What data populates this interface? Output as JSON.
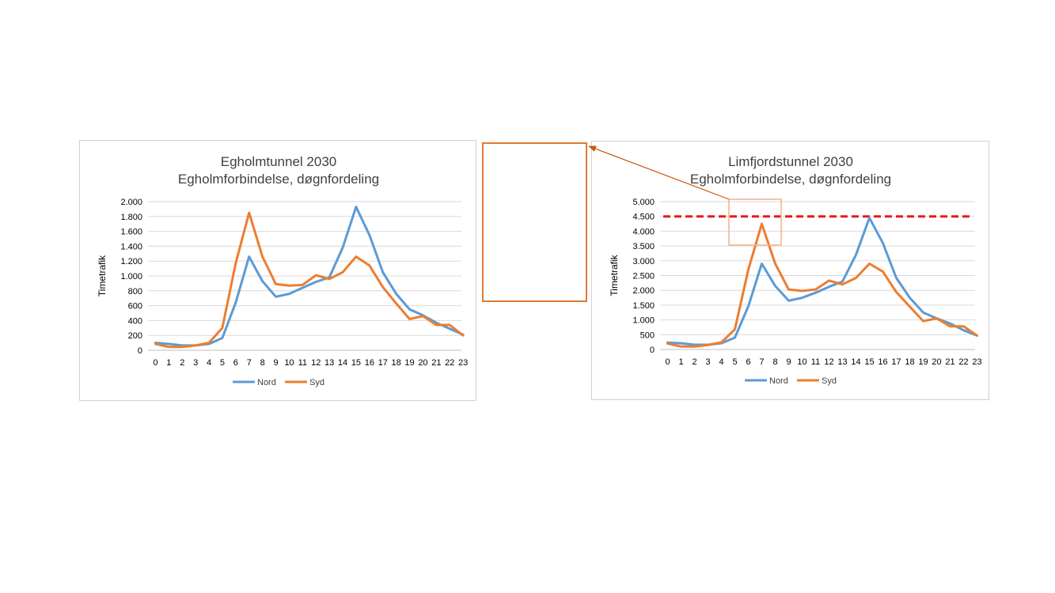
{
  "colors": {
    "nord": "#5B9BD5",
    "syd": "#ED7D31",
    "grid": "#d9d9d9",
    "threshold": "#E81818",
    "callout": "#E07A32",
    "callout_small": "#F4B183",
    "arrow": "#C55A11"
  },
  "chart_data": [
    {
      "type": "line",
      "title": "Egholmtunnel 2030",
      "subtitle": "Egholmforbindelse, døgnfordeling",
      "xlabel": "",
      "ylabel": "Timetrafik",
      "categories": [
        "0",
        "1",
        "2",
        "3",
        "4",
        "5",
        "6",
        "7",
        "8",
        "9",
        "10",
        "11",
        "12",
        "13",
        "14",
        "15",
        "16",
        "17",
        "18",
        "19",
        "20",
        "21",
        "22",
        "23"
      ],
      "ylim": [
        0,
        2000
      ],
      "yticks": [
        0,
        200,
        400,
        600,
        800,
        1000,
        1200,
        1400,
        1600,
        1800,
        2000
      ],
      "ytick_labels": [
        "0",
        "200",
        "400",
        "600",
        "800",
        "1.000",
        "1.200",
        "1.400",
        "1.600",
        "1.800",
        "2.000"
      ],
      "grid": true,
      "legend": "bottom",
      "series": [
        {
          "name": "Nord",
          "values": [
            100,
            85,
            65,
            65,
            85,
            165,
            640,
            1260,
            930,
            720,
            760,
            840,
            920,
            980,
            1380,
            1930,
            1550,
            1050,
            760,
            550,
            470,
            370,
            290,
            210
          ]
        },
        {
          "name": "Syd",
          "values": [
            85,
            45,
            45,
            65,
            100,
            300,
            1170,
            1850,
            1260,
            890,
            870,
            880,
            1010,
            960,
            1050,
            1260,
            1140,
            850,
            630,
            420,
            460,
            340,
            340,
            200
          ]
        }
      ]
    },
    {
      "type": "line",
      "title": "Limfjordstunnel 2030",
      "subtitle": "Egholmforbindelse, døgnfordeling",
      "xlabel": "",
      "ylabel": "Timetrafik",
      "categories": [
        "0",
        "1",
        "2",
        "3",
        "4",
        "5",
        "6",
        "7",
        "8",
        "9",
        "10",
        "11",
        "12",
        "13",
        "14",
        "15",
        "16",
        "17",
        "18",
        "19",
        "20",
        "21",
        "22",
        "23"
      ],
      "ylim": [
        0,
        5000
      ],
      "yticks": [
        0,
        500,
        1000,
        1500,
        2000,
        2500,
        3000,
        3500,
        4000,
        4500,
        5000
      ],
      "ytick_labels": [
        "0",
        "500",
        "1.000",
        "1.500",
        "2.000",
        "2.500",
        "3.000",
        "3.500",
        "4.000",
        "4.500",
        "5.000"
      ],
      "grid": true,
      "legend": "bottom",
      "threshold": 4500,
      "series": [
        {
          "name": "Nord",
          "values": [
            230,
            210,
            160,
            160,
            210,
            400,
            1460,
            2900,
            2150,
            1650,
            1750,
            1920,
            2120,
            2300,
            3200,
            4450,
            3600,
            2420,
            1750,
            1250,
            1050,
            880,
            650,
            470
          ]
        },
        {
          "name": "Syd",
          "values": [
            200,
            100,
            100,
            150,
            240,
            680,
            2700,
            4250,
            2900,
            2030,
            1980,
            2030,
            2330,
            2200,
            2420,
            2900,
            2630,
            1940,
            1450,
            960,
            1050,
            780,
            780,
            470
          ]
        }
      ]
    }
  ]
}
